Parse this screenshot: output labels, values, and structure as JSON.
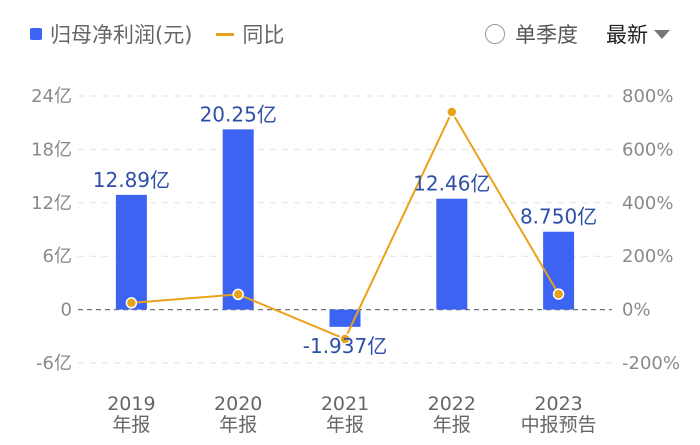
{
  "legend": {
    "bar_label": "归母净利润(元)",
    "line_label": "同比"
  },
  "controls": {
    "season_label": "单季度",
    "sort_label": "最新"
  },
  "colors": {
    "bar": "#3d63f2",
    "line": "#e9a21c",
    "data_label": "#2d4fa8"
  },
  "chart_data": {
    "type": "bar",
    "categories": [
      "2019\n年报",
      "2020\n年报",
      "2021\n年报",
      "2022\n年报",
      "2023\n中报预告"
    ],
    "x_top": [
      "2019",
      "2020",
      "2021",
      "2022",
      "2023"
    ],
    "x_bottom": [
      "年报",
      "年报",
      "年报",
      "年报",
      "中报预告"
    ],
    "series": [
      {
        "name": "归母净利润(元)",
        "type": "bar",
        "values": [
          12.89,
          20.25,
          -1.937,
          12.46,
          8.75
        ],
        "labels": [
          "12.89亿",
          "20.25亿",
          "-1.937亿",
          "12.46亿",
          "8.750亿"
        ]
      },
      {
        "name": "同比",
        "type": "line",
        "axis": "right",
        "values": [
          25,
          57,
          -110,
          740,
          58
        ]
      }
    ],
    "y_left": {
      "ylim": [
        -6,
        24
      ],
      "ticks": [
        24,
        18,
        12,
        6,
        0,
        -6
      ],
      "tick_labels": [
        "24亿",
        "18亿",
        "12亿",
        "6亿",
        "0",
        "-6亿"
      ]
    },
    "y_right": {
      "ylim": [
        -200,
        800
      ],
      "ticks": [
        800,
        600,
        400,
        200,
        0,
        -200
      ],
      "tick_labels": [
        "800%",
        "600%",
        "400%",
        "200%",
        "0%",
        "-200%"
      ]
    },
    "grid": true
  }
}
